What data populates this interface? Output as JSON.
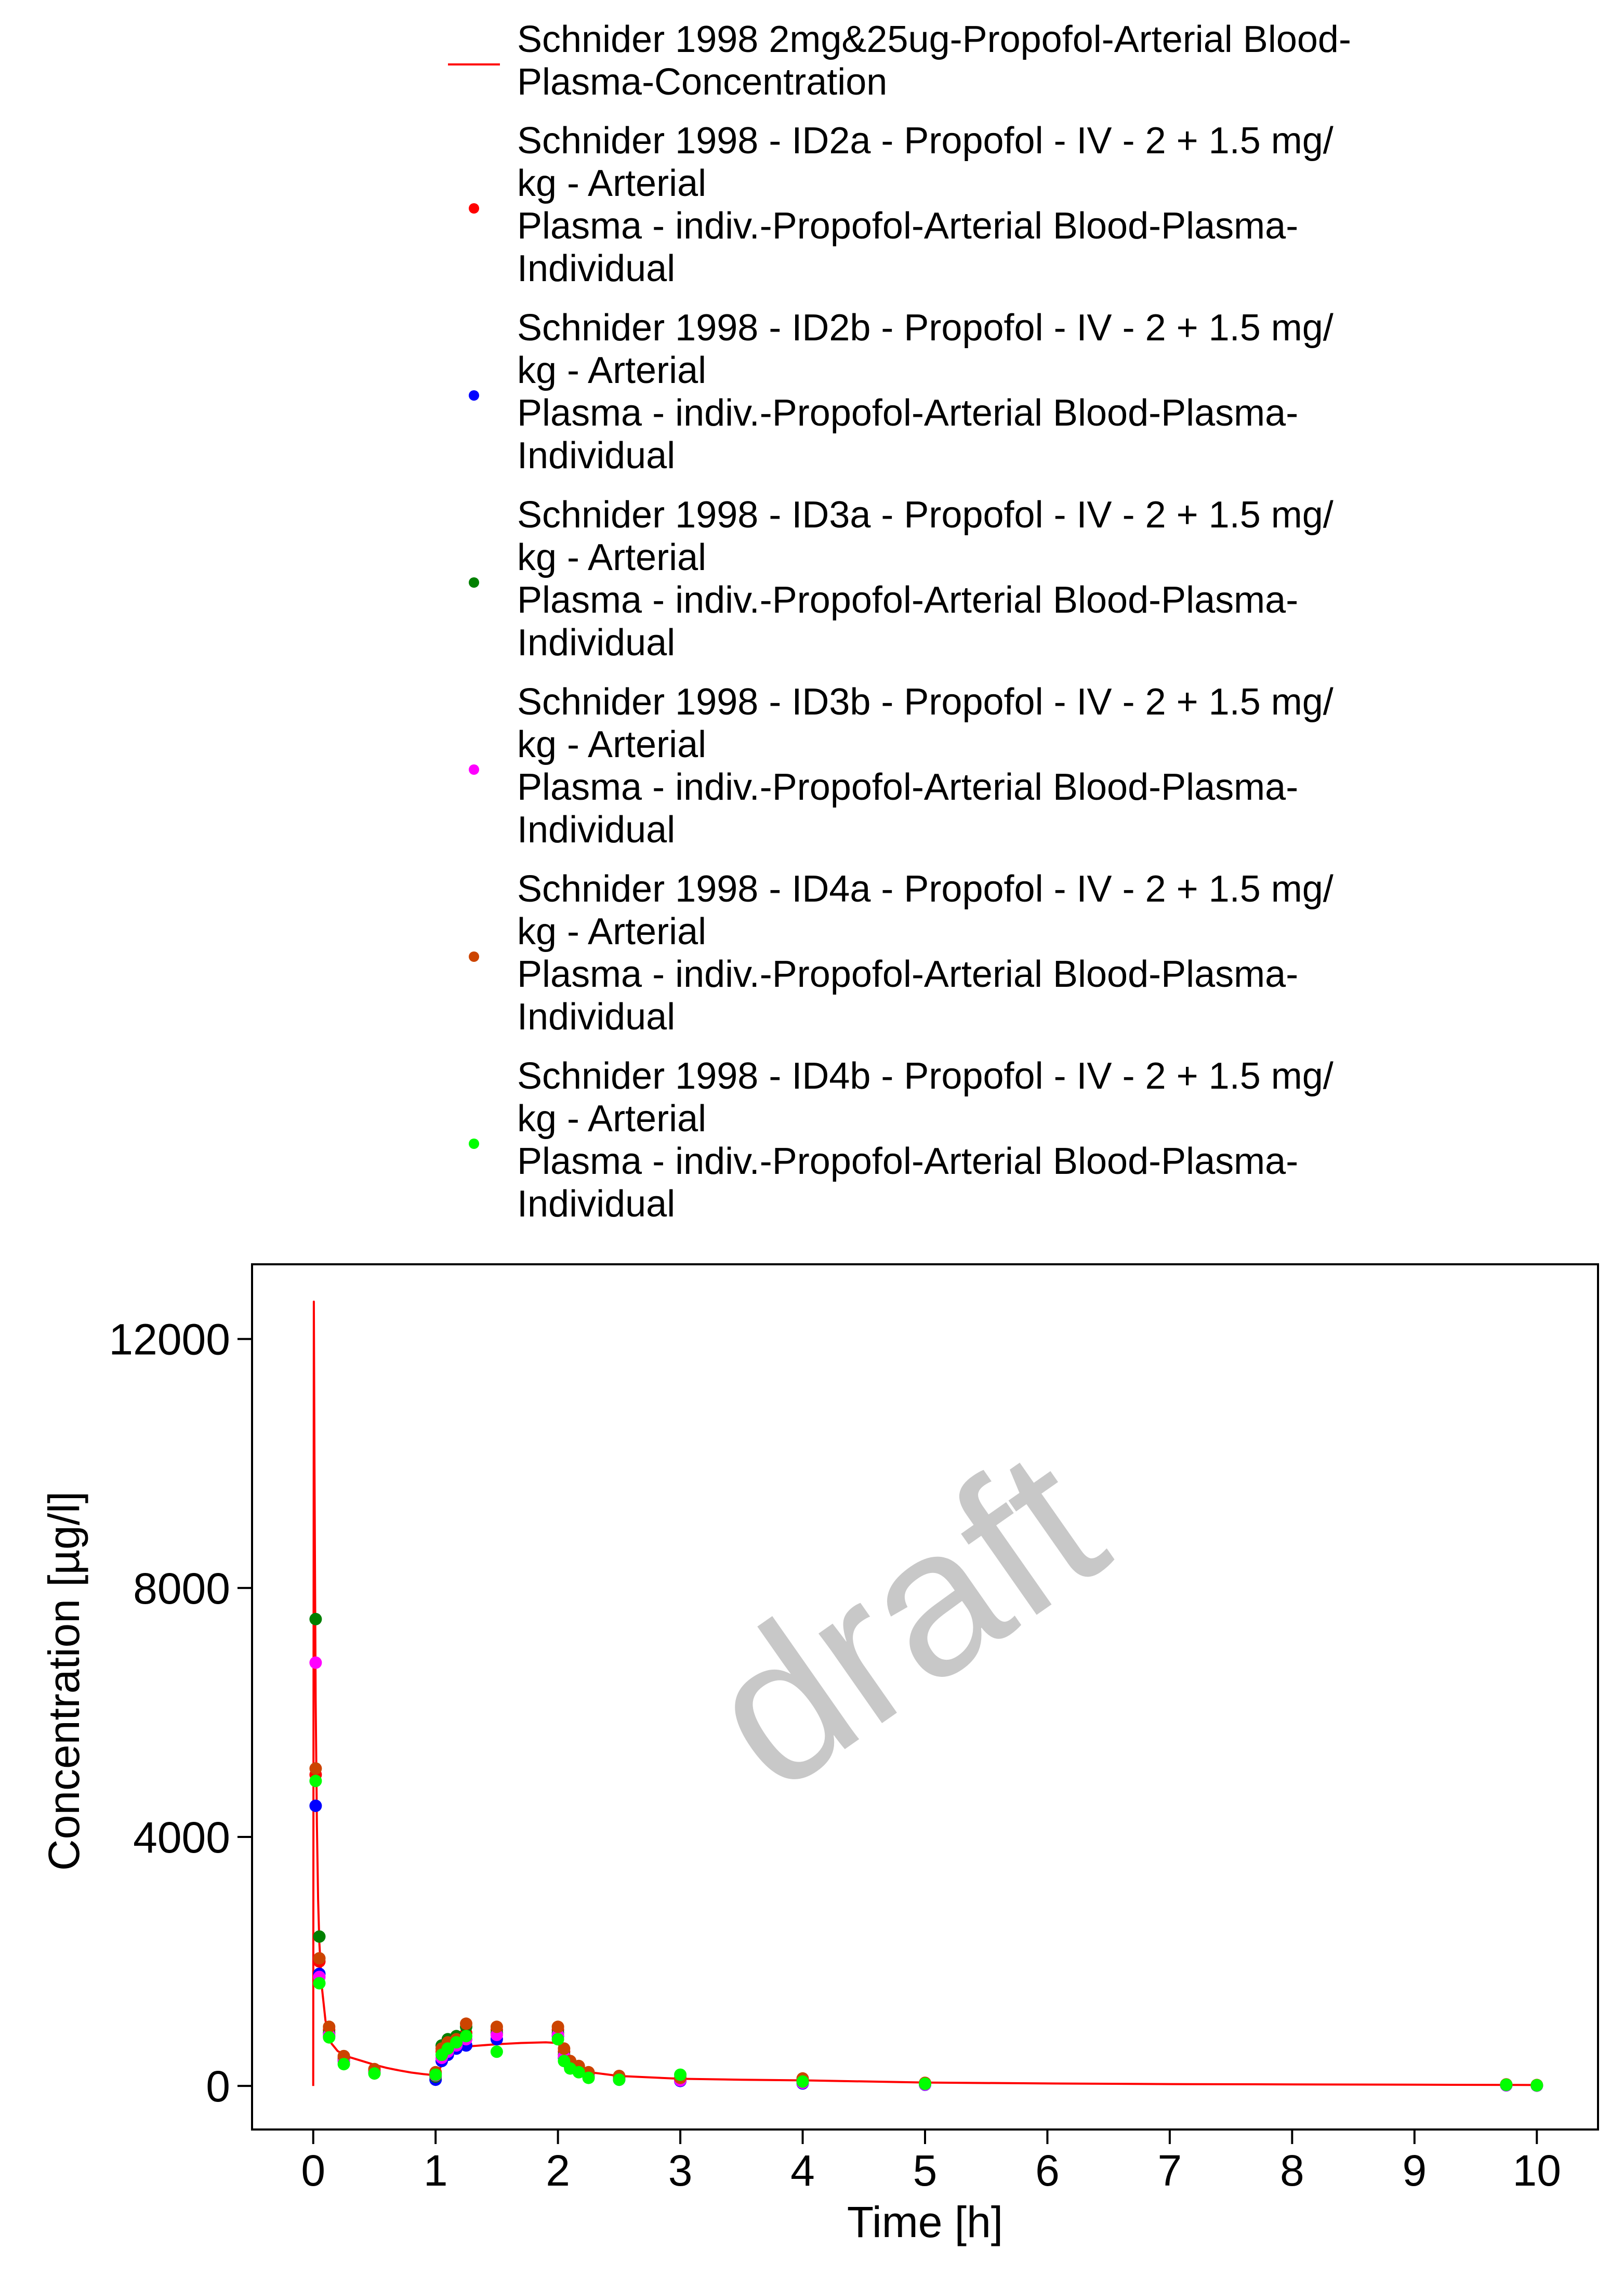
{
  "chart_data": {
    "type": "scatter",
    "watermark": "draft",
    "xlabel": "Time [h]",
    "ylabel": "Concentration [µg/l]",
    "xlim": [
      -0.5,
      10.5
    ],
    "ylim": [
      -700,
      13200
    ],
    "xticks": [
      "0",
      "1",
      "2",
      "3",
      "4",
      "5",
      "6",
      "7",
      "8",
      "9",
      "10"
    ],
    "yticks": [
      "0",
      "4000",
      "8000",
      "12000"
    ],
    "grid": false,
    "legend_position": "top",
    "series": [
      {
        "name": "Schnider 1998 2mg&25ug-Propofol-Arterial Blood-Plasma-Concentration",
        "label_lines": [
          "Schnider 1998 2mg&25ug-Propofol-Arterial Blood-",
          "Plasma-Concentration"
        ],
        "kind": "line",
        "color": "#ff0000",
        "x": [
          0,
          0.005,
          0.01,
          0.015,
          0.02,
          0.03,
          0.04,
          0.05,
          0.07,
          0.1,
          0.15,
          0.2,
          0.3,
          0.4,
          0.5,
          0.6,
          0.7,
          0.8,
          0.9,
          1.0,
          1.05,
          1.1,
          1.2,
          1.3,
          1.5,
          1.7,
          1.9,
          2.0,
          2.05,
          2.1,
          2.2,
          2.3,
          2.5,
          3.0,
          3.5,
          4.0,
          5.0,
          6.0,
          7.0,
          8.0,
          9.0,
          10.0
        ],
        "y": [
          0,
          12600,
          10000,
          8000,
          6200,
          4200,
          3000,
          2300,
          1600,
          1050,
          680,
          560,
          460,
          400,
          340,
          290,
          250,
          215,
          190,
          170,
          330,
          480,
          590,
          640,
          670,
          690,
          700,
          690,
          520,
          360,
          260,
          210,
          160,
          115,
          100,
          90,
          55,
          40,
          30,
          25,
          20,
          15
        ]
      },
      {
        "name": "Schnider 1998 - ID2a - Propofol - IV - 2 + 1.5 mg/kg - Arterial Plasma - indiv.-Propofol-Arterial Blood-Plasma-Individual",
        "label_lines": [
          "Schnider 1998 - ID2a - Propofol - IV - 2 + 1.5 mg/",
          "kg - Arterial",
          "Plasma - indiv.-Propofol-Arterial Blood-Plasma-",
          "Individual"
        ],
        "kind": "points",
        "color": "#ff0000",
        "x": [
          0.02,
          0.05,
          0.13,
          0.25,
          0.5,
          1.0,
          1.05,
          1.1,
          1.17,
          1.25,
          1.5,
          2.0,
          2.05,
          2.1,
          2.17,
          2.25,
          2.5,
          3.0,
          4.0,
          5.0,
          9.75,
          10.0
        ],
        "y": [
          5000,
          2000,
          900,
          450,
          260,
          200,
          550,
          650,
          700,
          850,
          900,
          900,
          550,
          350,
          300,
          200,
          150,
          120,
          80,
          40,
          20,
          10
        ]
      },
      {
        "name": "Schnider 1998 - ID2b - Propofol - IV - 2 + 1.5 mg/kg - Arterial Plasma - indiv.-Propofol-Arterial Blood-Plasma-Individual",
        "label_lines": [
          "Schnider 1998 - ID2b - Propofol - IV - 2 + 1.5 mg/",
          "kg - Arterial",
          "Plasma - indiv.-Propofol-Arterial Blood-Plasma-",
          "Individual"
        ],
        "kind": "points",
        "color": "#0000ff",
        "x": [
          0.02,
          0.05,
          0.13,
          0.25,
          0.5,
          1.0,
          1.05,
          1.1,
          1.17,
          1.25,
          1.5,
          2.0,
          2.05,
          2.1,
          2.17,
          2.25,
          2.5,
          3.0,
          4.0,
          5.0,
          9.75,
          10.0
        ],
        "y": [
          4500,
          1800,
          800,
          400,
          230,
          100,
          400,
          500,
          600,
          650,
          750,
          800,
          450,
          300,
          250,
          150,
          100,
          80,
          40,
          20,
          10,
          5
        ]
      },
      {
        "name": "Schnider 1998 - ID3a - Propofol - IV - 2 + 1.5 mg/kg - Arterial Plasma - indiv.-Propofol-Arterial Blood-Plasma-Individual",
        "label_lines": [
          "Schnider 1998 - ID3a - Propofol - IV - 2 + 1.5 mg/",
          "kg - Arterial",
          "Plasma - indiv.-Propofol-Arterial Blood-Plasma-",
          "Individual"
        ],
        "kind": "points",
        "color": "#008000",
        "x": [
          0.02,
          0.05,
          0.13,
          0.25,
          0.5,
          1.0,
          1.05,
          1.1,
          1.17,
          1.25,
          1.5,
          2.0,
          2.05,
          2.1,
          2.17,
          2.25,
          2.5,
          3.0,
          4.0,
          5.0,
          9.75,
          10.0
        ],
        "y": [
          7500,
          2400,
          850,
          420,
          250,
          150,
          650,
          750,
          800,
          950,
          850,
          850,
          500,
          350,
          280,
          170,
          130,
          100,
          60,
          30,
          15,
          8
        ]
      },
      {
        "name": "Schnider 1998 - ID3b - Propofol - IV - 2 + 1.5 mg/kg - Arterial Plasma - indiv.-Propofol-Arterial Blood-Plasma-Individual",
        "label_lines": [
          "Schnider 1998 - ID3b - Propofol - IV - 2 + 1.5 mg/",
          "kg - Arterial",
          "Plasma - indiv.-Propofol-Arterial Blood-Plasma-",
          "Individual"
        ],
        "kind": "points",
        "color": "#ff00ff",
        "x": [
          0.02,
          0.05,
          0.13,
          0.25,
          0.5,
          1.0,
          1.05,
          1.1,
          1.17,
          1.25,
          1.5,
          2.0,
          2.05,
          2.1,
          2.17,
          2.25,
          2.5,
          3.0,
          4.0,
          5.0,
          9.75,
          10.0
        ],
        "y": [
          6800,
          1750,
          820,
          400,
          240,
          170,
          450,
          550,
          650,
          750,
          820,
          820,
          480,
          320,
          260,
          160,
          120,
          90,
          50,
          25,
          12,
          6
        ]
      },
      {
        "name": "Schnider 1998 - ID4a - Propofol - IV - 2 + 1.5 mg/kg - Arterial Plasma - indiv.-Propofol-Arterial Blood-Plasma-Individual",
        "label_lines": [
          "Schnider 1998 - ID4a - Propofol - IV - 2 + 1.5 mg/",
          "kg - Arterial",
          "Plasma - indiv.-Propofol-Arterial Blood-Plasma-",
          "Individual"
        ],
        "kind": "points",
        "color": "#cc4400",
        "x": [
          0.02,
          0.05,
          0.13,
          0.25,
          0.5,
          1.0,
          1.05,
          1.1,
          1.17,
          1.25,
          1.5,
          2.0,
          2.05,
          2.1,
          2.17,
          2.25,
          2.5,
          3.0,
          4.0,
          5.0,
          9.75,
          10.0
        ],
        "y": [
          5100,
          2050,
          950,
          480,
          270,
          220,
          600,
          700,
          750,
          1000,
          950,
          950,
          600,
          400,
          320,
          220,
          160,
          130,
          120,
          50,
          25,
          15
        ]
      },
      {
        "name": "Schnider 1998 - ID4b - Propofol - IV - 2 + 1.5 mg/kg - Arterial Plasma - indiv.-Propofol-Arterial Blood-Plasma-Individual",
        "label_lines": [
          "Schnider 1998 - ID4b - Propofol - IV - 2 + 1.5 mg/",
          "kg - Arterial",
          "Plasma - indiv.-Propofol-Arterial Blood-Plasma-",
          "Individual"
        ],
        "kind": "points",
        "color": "#00ff00",
        "x": [
          0.02,
          0.05,
          0.13,
          0.25,
          0.5,
          1.0,
          1.05,
          1.1,
          1.17,
          1.25,
          1.5,
          2.0,
          2.05,
          2.1,
          2.17,
          2.25,
          2.5,
          3.0,
          4.0,
          5.0,
          9.75,
          10.0
        ],
        "y": [
          4900,
          1650,
          780,
          350,
          200,
          180,
          500,
          600,
          700,
          800,
          550,
          750,
          400,
          280,
          220,
          130,
          100,
          180,
          70,
          35,
          18,
          10
        ]
      }
    ]
  }
}
